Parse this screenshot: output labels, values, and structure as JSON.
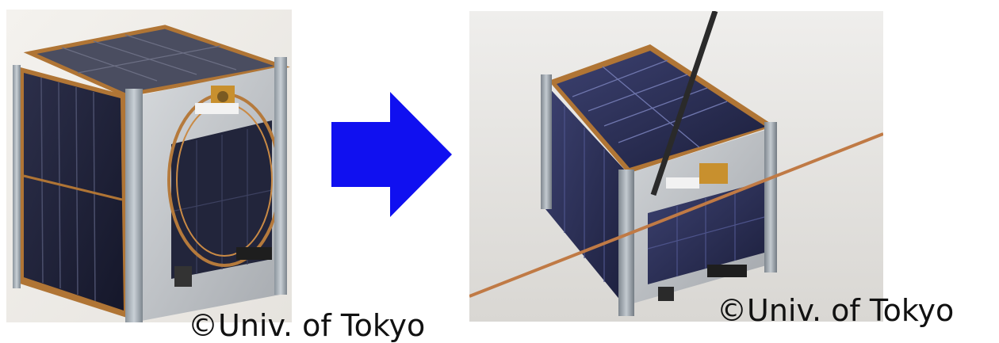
{
  "captions": {
    "left": "©Univ. of Tokyo",
    "right": "©Univ. of Tokyo"
  },
  "images": {
    "left": {
      "subject": "cubesat-with-coiled-antenna"
    },
    "right": {
      "subject": "cubesat-with-deployed-antenna"
    }
  },
  "arrow": {
    "color": "#1010f0",
    "direction": "right"
  }
}
